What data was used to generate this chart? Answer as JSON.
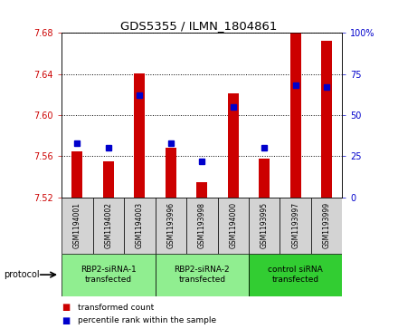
{
  "title": "GDS5355 / ILMN_1804861",
  "samples": [
    "GSM1194001",
    "GSM1194002",
    "GSM1194003",
    "GSM1193996",
    "GSM1193998",
    "GSM1194000",
    "GSM1193995",
    "GSM1193997",
    "GSM1193999"
  ],
  "bar_values": [
    7.565,
    7.555,
    7.641,
    7.568,
    7.535,
    7.621,
    7.558,
    7.682,
    7.672
  ],
  "percentile_values": [
    33,
    30,
    62,
    33,
    22,
    55,
    30,
    68,
    67
  ],
  "ymin": 7.52,
  "ymax": 7.68,
  "yticks": [
    7.52,
    7.56,
    7.6,
    7.64,
    7.68
  ],
  "right_yticks": [
    0,
    25,
    50,
    75,
    100
  ],
  "bar_color": "#cc0000",
  "percentile_color": "#0000cc",
  "groups": [
    {
      "label": "RBP2-siRNA-1\ntransfected",
      "start": 0,
      "end": 3,
      "color": "#90ee90"
    },
    {
      "label": "RBP2-siRNA-2\ntransfected",
      "start": 3,
      "end": 6,
      "color": "#90ee90"
    },
    {
      "label": "control siRNA\ntransfected",
      "start": 6,
      "end": 9,
      "color": "#32cd32"
    }
  ],
  "protocol_label": "protocol",
  "legend_items": [
    {
      "label": "transformed count",
      "color": "#cc0000"
    },
    {
      "label": "percentile rank within the sample",
      "color": "#0000cc"
    }
  ],
  "bar_width": 0.35,
  "background_color": "#ffffff",
  "plot_bg_color": "#ffffff",
  "label_color_left": "#cc0000",
  "label_color_right": "#0000cc",
  "sample_bg_color": "#d3d3d3",
  "group1_color": "#90ee90",
  "group2_color": "#32cd32"
}
